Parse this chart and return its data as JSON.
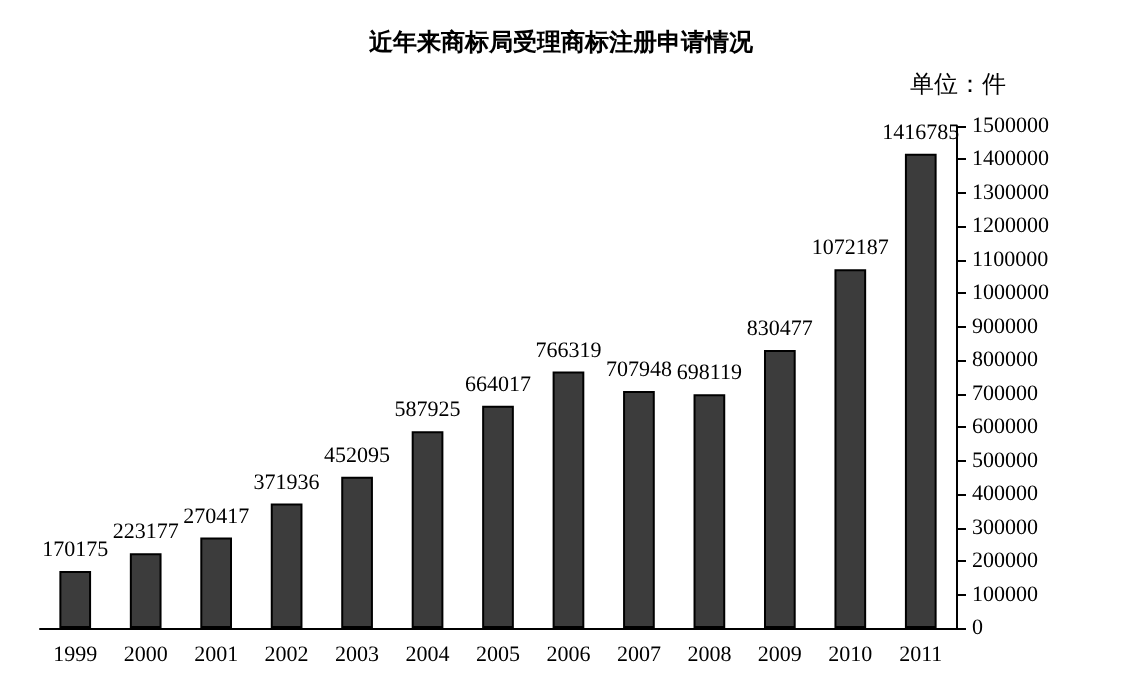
{
  "chart_data": {
    "type": "bar",
    "title": "近年来商标局受理商标注册申请情况",
    "annotations": [
      "单位：件"
    ],
    "categories": [
      "1999",
      "2000",
      "2001",
      "2002",
      "2003",
      "2004",
      "2005",
      "2006",
      "2007",
      "2008",
      "2009",
      "2010",
      "2011"
    ],
    "values": [
      170175,
      223177,
      270417,
      371936,
      452095,
      587925,
      664017,
      766319,
      707948,
      698119,
      830477,
      1072187,
      1416785
    ],
    "color": "#3c3c3c",
    "ylim": [
      0,
      1500000
    ],
    "yticks": [
      0,
      100000,
      200000,
      300000,
      400000,
      500000,
      600000,
      700000,
      800000,
      900000,
      1000000,
      1100000,
      1200000,
      1300000,
      1400000,
      1500000
    ],
    "grid": false,
    "data_labels": true
  }
}
